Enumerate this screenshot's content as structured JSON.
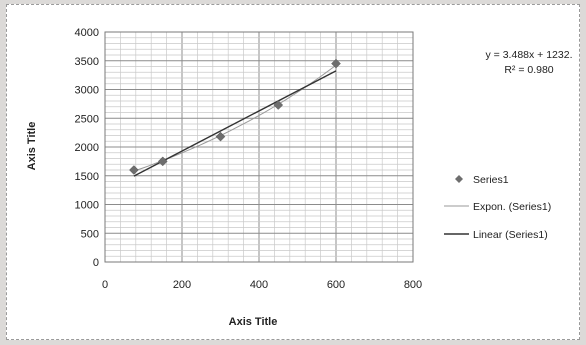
{
  "chart_data": {
    "type": "scatter",
    "title": "",
    "xlabel": "Axis Title",
    "ylabel": "Axis Title",
    "xlim": [
      0,
      800
    ],
    "ylim": [
      0,
      4000
    ],
    "xticks": [
      0,
      200,
      400,
      600,
      800
    ],
    "yticks": [
      0,
      500,
      1000,
      1500,
      2000,
      2500,
      3000,
      3500,
      4000
    ],
    "grid": true,
    "legend_position": "right",
    "series": [
      {
        "name": "Series1",
        "type": "scatter",
        "marker": "diamond",
        "color": "#6e6e6e",
        "x": [
          75,
          150,
          300,
          450,
          600
        ],
        "y": [
          1600,
          1750,
          2180,
          2730,
          3450
        ]
      }
    ],
    "trendlines": [
      {
        "name": "Expon. (Series1)",
        "type": "exponential",
        "color": "#9a9a9a"
      },
      {
        "name": "Linear (Series1)",
        "type": "linear",
        "slope": 3.488,
        "intercept": 1232,
        "color": "#333333"
      }
    ],
    "annotations": {
      "equation": "y = 3.488x + 1232.",
      "r_squared": "R² = 0.980"
    }
  }
}
